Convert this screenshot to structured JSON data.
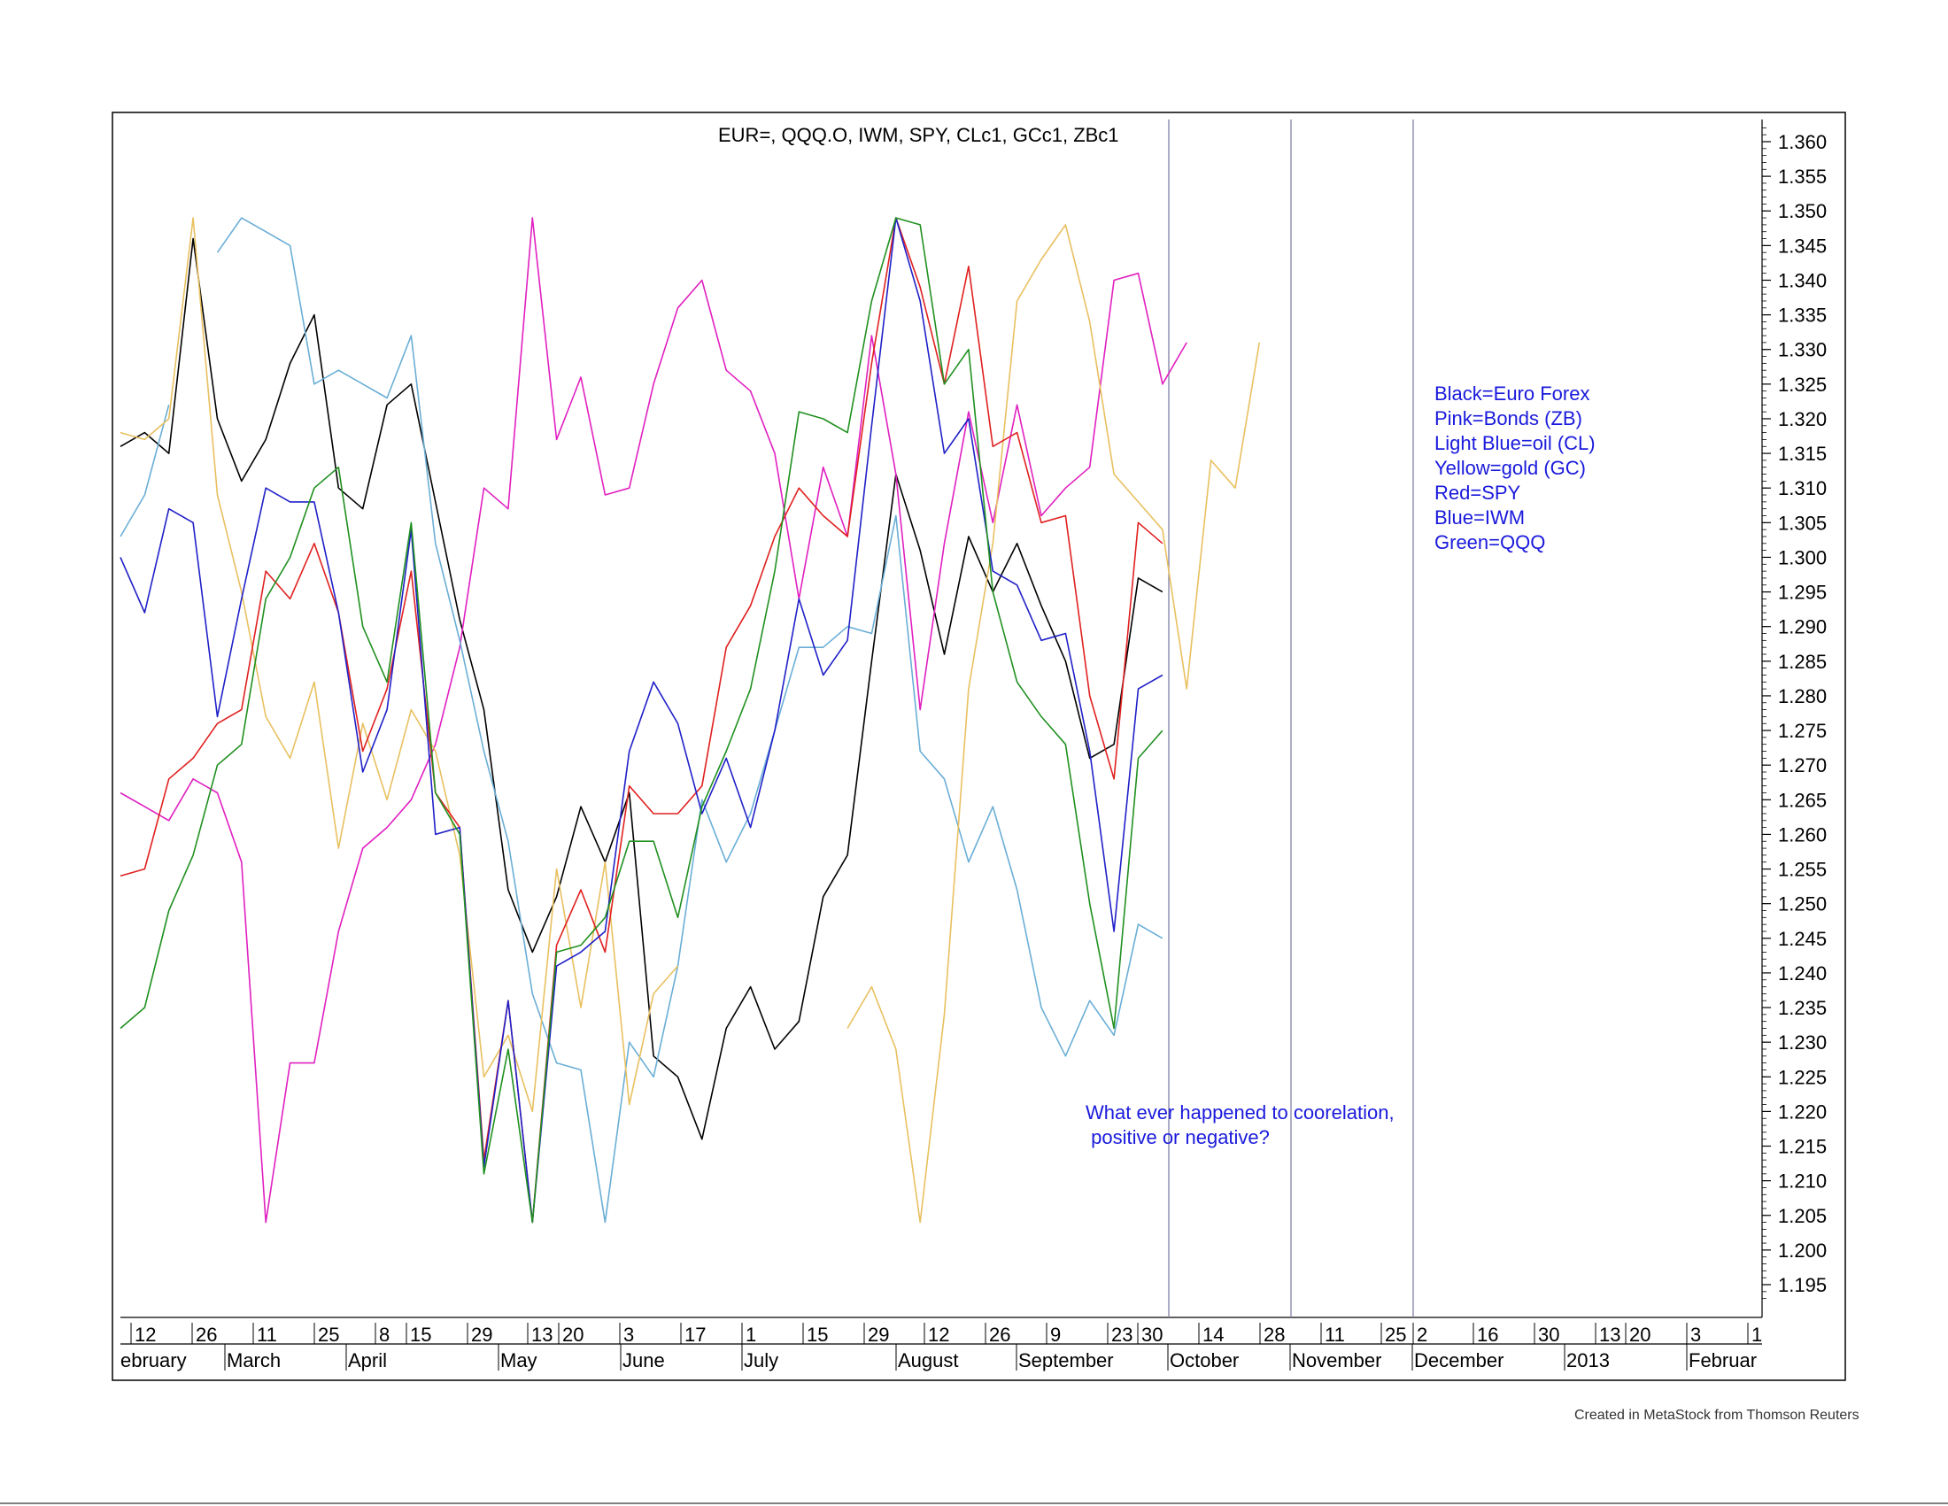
{
  "chart_data": {
    "type": "line",
    "title": "EUR=, QQQ.O, IWM, SPY, CLc1, GCc1, ZBc1",
    "ylim": [
      1.19,
      1.363
    ],
    "y_ticks": [
      "1.360",
      "1.355",
      "1.350",
      "1.345",
      "1.340",
      "1.335",
      "1.330",
      "1.325",
      "1.320",
      "1.315",
      "1.310",
      "1.305",
      "1.300",
      "1.295",
      "1.290",
      "1.285",
      "1.280",
      "1.275",
      "1.270",
      "1.265",
      "1.260",
      "1.255",
      "1.250",
      "1.245",
      "1.240",
      "1.235",
      "1.230",
      "1.225",
      "1.220",
      "1.215",
      "1.210",
      "1.205",
      "1.200",
      "1.195"
    ],
    "day_labels": [
      "12",
      "26",
      "11",
      "25",
      "8",
      "15",
      "29",
      "13",
      "20",
      "3",
      "17",
      "1",
      "15",
      "29",
      "12",
      "26",
      "9",
      "23",
      "30",
      "14",
      "28",
      "11",
      "25",
      "2",
      "16",
      "30",
      "13",
      "20",
      "3",
      "1"
    ],
    "month_labels": [
      "ebruary",
      "March",
      "April",
      "May",
      "June",
      "July",
      "August",
      "September",
      "October",
      "November",
      "December",
      "2013",
      "Februar"
    ],
    "legend": [
      "Black=Euro Forex",
      "Pink=Bonds (ZB)",
      "Light Blue=oil (CL)",
      "Yellow=gold (GC)",
      "Red=SPY",
      "Blue=IWM",
      "Green=QQQ"
    ],
    "annotation": [
      "What ever happened to coorelation,",
      " positive or negative?"
    ],
    "series": [
      {
        "color": "#000000",
        "values": [
          1.316,
          1.318,
          1.315,
          1.346,
          1.32,
          1.311,
          1.317,
          1.328,
          1.335,
          1.31,
          1.307,
          1.322,
          1.325,
          1.308,
          1.291,
          1.278,
          1.252,
          1.243,
          1.251,
          1.264,
          1.256,
          1.266,
          1.228,
          1.225,
          1.216,
          1.232,
          1.238,
          1.229,
          1.233,
          1.251,
          1.257,
          1.285,
          1.312,
          1.301,
          1.286,
          1.303,
          1.295,
          1.302,
          1.293,
          1.285,
          1.271,
          1.273,
          1.297,
          1.295
        ]
      },
      {
        "color": "#e020c0",
        "values": [
          1.266,
          1.264,
          1.262,
          1.268,
          1.266,
          1.256,
          1.204,
          1.227,
          1.227,
          1.246,
          1.258,
          1.261,
          1.265,
          1.273,
          1.287,
          1.31,
          1.307,
          1.349,
          1.317,
          1.326,
          1.309,
          1.31,
          1.325,
          1.336,
          1.34,
          1.327,
          1.324,
          1.315,
          1.294,
          1.313,
          1.303,
          1.332,
          1.312,
          1.278,
          1.302,
          1.321,
          1.305,
          1.322,
          1.306,
          1.31,
          1.313,
          1.34,
          1.341,
          1.325,
          1.331
        ]
      },
      {
        "color": "#6aaed6",
        "values": [
          1.303,
          1.309,
          1.322,
          null,
          1.344,
          1.349,
          1.347,
          1.345,
          1.325,
          1.327,
          1.325,
          1.323,
          1.332,
          1.302,
          1.288,
          1.272,
          1.259,
          1.237,
          1.227,
          1.226,
          1.204,
          1.23,
          1.225,
          1.241,
          1.265,
          1.256,
          1.263,
          1.275,
          1.287,
          1.287,
          1.29,
          1.289,
          1.306,
          1.272,
          1.268,
          1.256,
          1.264,
          1.252,
          1.235,
          1.228,
          1.236,
          1.231,
          1.247,
          1.245
        ]
      },
      {
        "color": "#e8c060",
        "values": [
          1.318,
          1.317,
          1.32,
          1.349,
          1.309,
          1.295,
          1.277,
          1.271,
          1.282,
          1.258,
          1.276,
          1.265,
          1.278,
          1.272,
          1.257,
          1.225,
          1.231,
          1.22,
          1.255,
          1.235,
          1.256,
          1.221,
          1.237,
          1.241,
          null,
          null,
          null,
          null,
          null,
          null,
          1.232,
          1.238,
          1.229,
          1.204,
          1.234,
          1.281,
          1.302,
          1.337,
          1.343,
          1.348,
          1.334,
          1.312,
          1.308,
          1.304,
          1.281,
          1.314,
          1.31,
          1.331
        ]
      },
      {
        "color": "#e02020",
        "values": [
          1.254,
          1.255,
          1.268,
          1.271,
          1.276,
          1.278,
          1.298,
          1.294,
          1.302,
          1.292,
          1.272,
          1.281,
          1.298,
          1.266,
          1.261,
          1.213,
          1.236,
          1.204,
          1.244,
          1.252,
          1.243,
          1.267,
          1.263,
          1.263,
          1.267,
          1.287,
          1.293,
          1.303,
          1.31,
          1.306,
          1.303,
          1.328,
          1.349,
          1.339,
          1.325,
          1.342,
          1.316,
          1.318,
          1.305,
          1.306,
          1.28,
          1.268,
          1.305,
          1.302
        ]
      },
      {
        "color": "#2020c8",
        "values": [
          1.3,
          1.292,
          1.307,
          1.305,
          1.277,
          1.294,
          1.31,
          1.308,
          1.308,
          1.292,
          1.269,
          1.278,
          1.304,
          1.26,
          1.261,
          1.212,
          1.236,
          1.204,
          1.241,
          1.243,
          1.246,
          1.272,
          1.282,
          1.276,
          1.263,
          1.271,
          1.261,
          1.275,
          1.294,
          1.283,
          1.288,
          1.319,
          1.349,
          1.337,
          1.315,
          1.32,
          1.298,
          1.296,
          1.288,
          1.289,
          1.272,
          1.246,
          1.281,
          1.283
        ]
      },
      {
        "color": "#209020",
        "values": [
          1.232,
          1.235,
          1.249,
          1.257,
          1.27,
          1.273,
          1.294,
          1.3,
          1.31,
          1.313,
          1.29,
          1.282,
          1.305,
          1.266,
          1.26,
          1.211,
          1.229,
          1.204,
          1.243,
          1.244,
          1.248,
          1.259,
          1.259,
          1.248,
          1.264,
          1.272,
          1.281,
          1.298,
          1.321,
          1.32,
          1.318,
          1.337,
          1.349,
          1.348,
          1.325,
          1.33,
          1.295,
          1.282,
          1.277,
          1.273,
          1.25,
          1.232,
          1.271,
          1.275
        ]
      }
    ]
  },
  "footer": "Created in MetaStock from Thomson Reuters"
}
